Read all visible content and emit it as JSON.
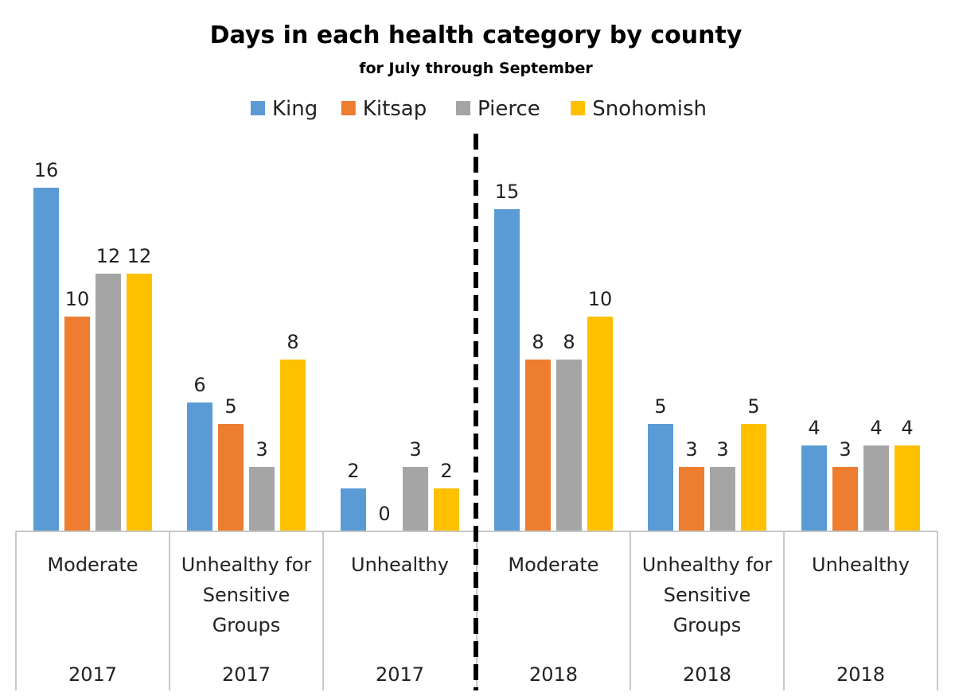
{
  "chart_data": {
    "type": "bar",
    "title": "Days in each health category by county",
    "subtitle": "for July through September",
    "legend_position": "top",
    "grid": false,
    "ylim": [
      0,
      16
    ],
    "categories": [
      {
        "label": "Moderate",
        "year": "2017"
      },
      {
        "label": "Unhealthy for Sensitive Groups",
        "year": "2017"
      },
      {
        "label": "Unhealthy",
        "year": "2017"
      },
      {
        "label": "Moderate",
        "year": "2018"
      },
      {
        "label": "Unhealthy for Sensitive Groups",
        "year": "2018"
      },
      {
        "label": "Unhealthy",
        "year": "2018"
      }
    ],
    "series": [
      {
        "name": "King",
        "color": "#5B9BD5",
        "values": [
          16,
          6,
          2,
          15,
          5,
          4
        ]
      },
      {
        "name": "Kitsap",
        "color": "#ED7D31",
        "values": [
          10,
          5,
          0,
          8,
          3,
          3
        ]
      },
      {
        "name": "Pierce",
        "color": "#A5A5A5",
        "values": [
          12,
          3,
          3,
          8,
          3,
          4
        ]
      },
      {
        "name": "Snohomish",
        "color": "#FFC000",
        "values": [
          12,
          8,
          2,
          10,
          5,
          4
        ]
      }
    ]
  }
}
